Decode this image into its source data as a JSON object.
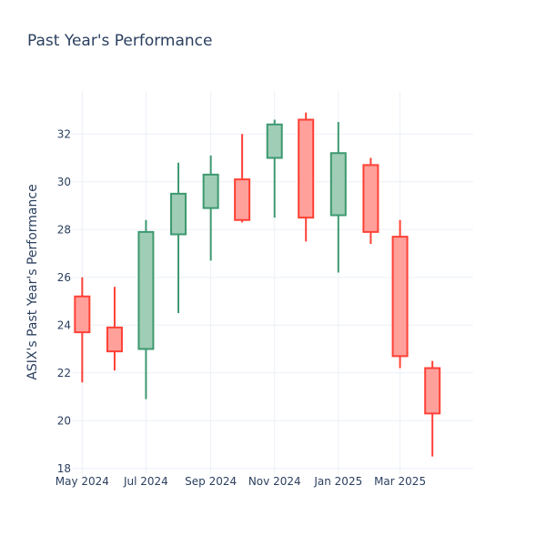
{
  "chart_data": {
    "type": "candlestick",
    "title": "Past Year's Performance",
    "xlabel": "",
    "ylabel": "ASIX's Past Year's Performance",
    "ylim": [
      17.8,
      33.8
    ],
    "y_ticks": [
      18,
      20,
      22,
      24,
      26,
      28,
      30,
      32
    ],
    "x_ticks": [
      {
        "label": "May 2024",
        "date": "2024-05-01"
      },
      {
        "label": "Jul 2024",
        "date": "2024-07-01"
      },
      {
        "label": "Sep 2024",
        "date": "2024-09-01"
      },
      {
        "label": "Nov 2024",
        "date": "2024-11-01"
      },
      {
        "label": "Jan 2025",
        "date": "2025-01-01"
      },
      {
        "label": "Mar 2025",
        "date": "2025-03-01"
      }
    ],
    "xlim": [
      "2024-04-22",
      "2025-05-10"
    ],
    "grid": true,
    "colors": {
      "increasing": "#3d9970",
      "increasing_fill": "#9fcdb6",
      "decreasing": "#ff4136",
      "decreasing_fill": "#ffa09b"
    },
    "candles": [
      {
        "date": "2024-05-01",
        "open": 25.2,
        "high": 26.0,
        "low": 21.6,
        "close": 23.7
      },
      {
        "date": "2024-06-01",
        "open": 23.9,
        "high": 25.6,
        "low": 22.1,
        "close": 22.9
      },
      {
        "date": "2024-07-01",
        "open": 23.0,
        "high": 28.4,
        "low": 20.9,
        "close": 27.9
      },
      {
        "date": "2024-08-01",
        "open": 27.8,
        "high": 30.8,
        "low": 24.5,
        "close": 29.5
      },
      {
        "date": "2024-09-01",
        "open": 28.9,
        "high": 31.1,
        "low": 26.7,
        "close": 30.3
      },
      {
        "date": "2024-10-01",
        "open": 30.1,
        "high": 32.0,
        "low": 28.3,
        "close": 28.4
      },
      {
        "date": "2024-11-01",
        "open": 31.0,
        "high": 32.6,
        "low": 28.5,
        "close": 32.4
      },
      {
        "date": "2024-12-01",
        "open": 32.6,
        "high": 32.9,
        "low": 27.5,
        "close": 28.5
      },
      {
        "date": "2025-01-01",
        "open": 28.6,
        "high": 32.5,
        "low": 26.2,
        "close": 31.2
      },
      {
        "date": "2025-02-01",
        "open": 30.7,
        "high": 31.0,
        "low": 27.4,
        "close": 27.9
      },
      {
        "date": "2025-03-01",
        "open": 27.7,
        "high": 28.4,
        "low": 22.2,
        "close": 22.7
      },
      {
        "date": "2025-04-01",
        "open": 22.2,
        "high": 22.5,
        "low": 18.5,
        "close": 20.3
      }
    ]
  }
}
